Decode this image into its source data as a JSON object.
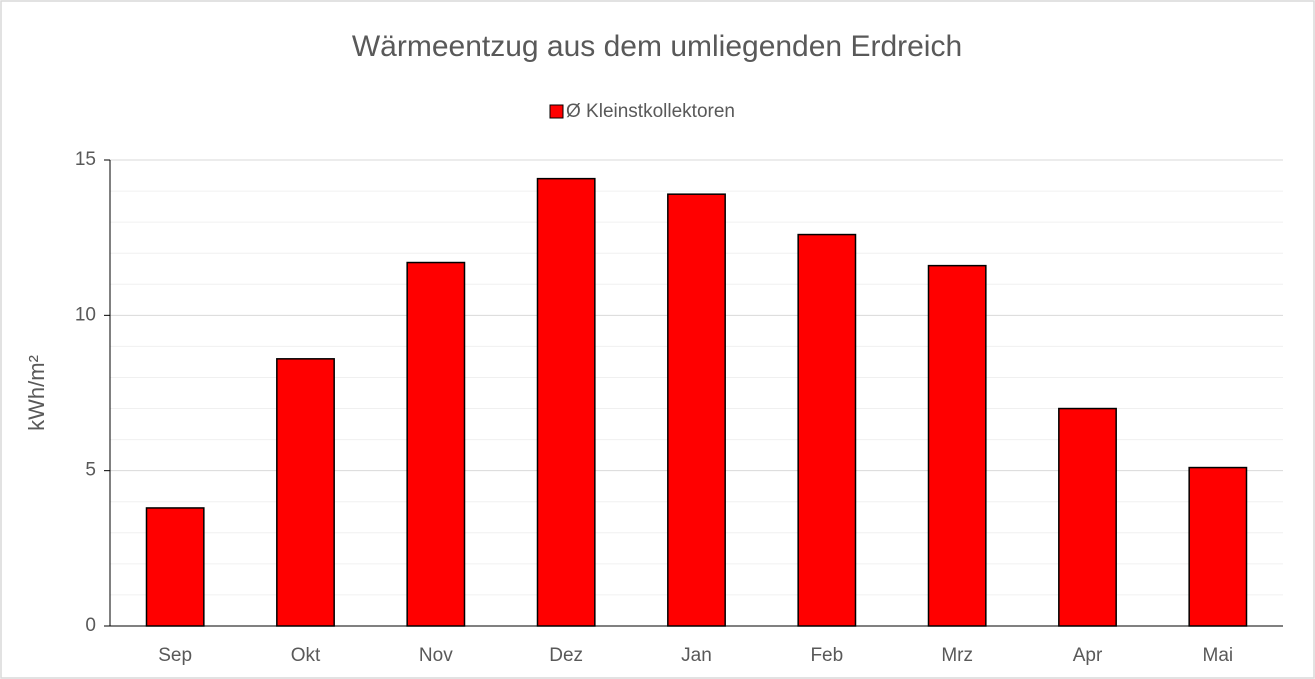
{
  "chart_data": {
    "type": "bar",
    "title": "Wärmeentzug aus dem umliegenden Erdreich",
    "y_label": "kWh/m²",
    "categories": [
      "Sep",
      "Okt",
      "Nov",
      "Dez",
      "Jan",
      "Feb",
      "Mrz",
      "Apr",
      "Mai"
    ],
    "series": [
      {
        "name": "Ø Kleinstkollektoren",
        "color": "#ff0000",
        "values": [
          3.8,
          8.6,
          11.7,
          14.4,
          13.9,
          12.6,
          11.6,
          7.0,
          5.1
        ]
      }
    ],
    "ylim": [
      0,
      15
    ],
    "yticks": [
      0,
      5,
      10,
      15
    ],
    "minor_yticks": [
      1,
      2,
      3,
      4,
      6,
      7,
      8,
      9,
      11,
      12,
      13,
      14
    ],
    "grid": true,
    "legend": "top"
  }
}
